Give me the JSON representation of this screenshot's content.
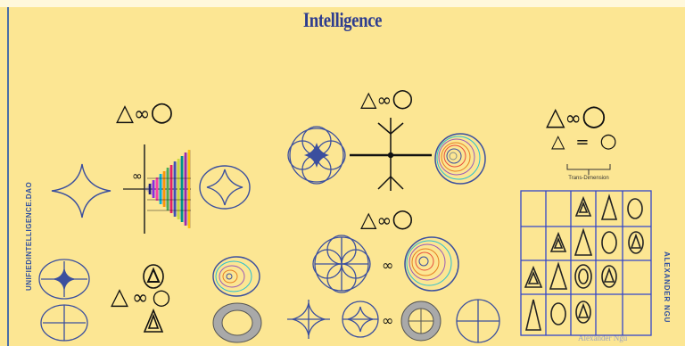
{
  "title": "Intelligence",
  "subtitle": "",
  "left_vertical_text": "UNIFIEDINTELLIGENCE.DAO",
  "right_vertical_text": "ALEXANDER NGU",
  "signature": "Alexander Ngu",
  "equation_caption": "Trans-Dimension",
  "symbols": {
    "triangle": "△",
    "infinity": "∞",
    "circle": "○",
    "equals": "="
  },
  "colors": {
    "background": "#fce693",
    "title": "#2e3d8f",
    "line": "#3b4f9e",
    "grid": "#3346c9"
  }
}
